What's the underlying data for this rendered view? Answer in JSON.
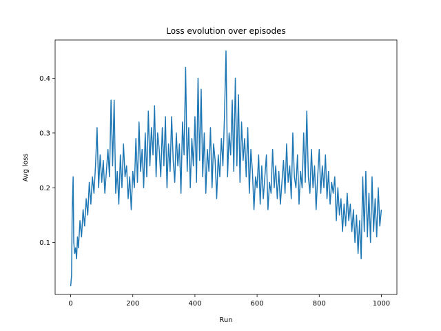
{
  "chart_data": {
    "type": "line",
    "title": "Loss evolution over episodes",
    "xlabel": "Run",
    "ylabel": "Avg loss",
    "xlim": [
      -50,
      1050
    ],
    "ylim": [
      0.005,
      0.47
    ],
    "x_ticks": [
      0,
      200,
      400,
      600,
      800,
      1000
    ],
    "y_ticks": [
      0.1,
      0.2,
      0.3,
      0.4
    ],
    "x_tick_labels": [
      "0",
      "200",
      "400",
      "600",
      "800",
      "1000"
    ],
    "y_tick_labels": [
      "0.1",
      "0.2",
      "0.3",
      "0.4"
    ],
    "grid": false,
    "series": [
      {
        "color": "#1f77b4",
        "points": [
          [
            0,
            0.02
          ],
          [
            3,
            0.04
          ],
          [
            5,
            0.16
          ],
          [
            8,
            0.22
          ],
          [
            10,
            0.1
          ],
          [
            13,
            0.08
          ],
          [
            16,
            0.09
          ],
          [
            19,
            0.07
          ],
          [
            22,
            0.11
          ],
          [
            25,
            0.09
          ],
          [
            30,
            0.14
          ],
          [
            35,
            0.11
          ],
          [
            40,
            0.16
          ],
          [
            45,
            0.13
          ],
          [
            50,
            0.18
          ],
          [
            55,
            0.15
          ],
          [
            60,
            0.21
          ],
          [
            65,
            0.17
          ],
          [
            70,
            0.22
          ],
          [
            75,
            0.19
          ],
          [
            80,
            0.24
          ],
          [
            85,
            0.31
          ],
          [
            90,
            0.2
          ],
          [
            95,
            0.26
          ],
          [
            100,
            0.21
          ],
          [
            105,
            0.25
          ],
          [
            110,
            0.19
          ],
          [
            115,
            0.23
          ],
          [
            120,
            0.27
          ],
          [
            125,
            0.22
          ],
          [
            130,
            0.36
          ],
          [
            135,
            0.24
          ],
          [
            140,
            0.36
          ],
          [
            145,
            0.19
          ],
          [
            150,
            0.23
          ],
          [
            155,
            0.17
          ],
          [
            160,
            0.26
          ],
          [
            165,
            0.2
          ],
          [
            170,
            0.28
          ],
          [
            175,
            0.22
          ],
          [
            180,
            0.24
          ],
          [
            185,
            0.18
          ],
          [
            190,
            0.22
          ],
          [
            195,
            0.16
          ],
          [
            200,
            0.23
          ],
          [
            205,
            0.2
          ],
          [
            210,
            0.29
          ],
          [
            215,
            0.21
          ],
          [
            220,
            0.32
          ],
          [
            225,
            0.23
          ],
          [
            230,
            0.27
          ],
          [
            235,
            0.2
          ],
          [
            240,
            0.3
          ],
          [
            245,
            0.22
          ],
          [
            250,
            0.34
          ],
          [
            255,
            0.24
          ],
          [
            260,
            0.31
          ],
          [
            265,
            0.26
          ],
          [
            270,
            0.35
          ],
          [
            275,
            0.22
          ],
          [
            280,
            0.3
          ],
          [
            285,
            0.27
          ],
          [
            290,
            0.22
          ],
          [
            295,
            0.31
          ],
          [
            300,
            0.24
          ],
          [
            305,
            0.33
          ],
          [
            310,
            0.2
          ],
          [
            315,
            0.28
          ],
          [
            320,
            0.23
          ],
          [
            325,
            0.33
          ],
          [
            330,
            0.25
          ],
          [
            335,
            0.21
          ],
          [
            340,
            0.3
          ],
          [
            345,
            0.24
          ],
          [
            350,
            0.28
          ],
          [
            355,
            0.19
          ],
          [
            360,
            0.32
          ],
          [
            365,
            0.26
          ],
          [
            370,
            0.42
          ],
          [
            375,
            0.23
          ],
          [
            380,
            0.31
          ],
          [
            385,
            0.2
          ],
          [
            390,
            0.29
          ],
          [
            395,
            0.24
          ],
          [
            400,
            0.33
          ],
          [
            405,
            0.21
          ],
          [
            410,
            0.4
          ],
          [
            415,
            0.25
          ],
          [
            420,
            0.38
          ],
          [
            425,
            0.22
          ],
          [
            430,
            0.3
          ],
          [
            435,
            0.19
          ],
          [
            440,
            0.27
          ],
          [
            445,
            0.23
          ],
          [
            450,
            0.31
          ],
          [
            455,
            0.2
          ],
          [
            460,
            0.28
          ],
          [
            465,
            0.25
          ],
          [
            470,
            0.18
          ],
          [
            475,
            0.26
          ],
          [
            480,
            0.22
          ],
          [
            485,
            0.29
          ],
          [
            490,
            0.24
          ],
          [
            495,
            0.33
          ],
          [
            500,
            0.45
          ],
          [
            505,
            0.22
          ],
          [
            510,
            0.3
          ],
          [
            515,
            0.26
          ],
          [
            520,
            0.36
          ],
          [
            525,
            0.23
          ],
          [
            530,
            0.4
          ],
          [
            535,
            0.24
          ],
          [
            540,
            0.37
          ],
          [
            545,
            0.21
          ],
          [
            550,
            0.32
          ],
          [
            555,
            0.25
          ],
          [
            560,
            0.29
          ],
          [
            565,
            0.22
          ],
          [
            570,
            0.31
          ],
          [
            575,
            0.19
          ],
          [
            580,
            0.27
          ],
          [
            585,
            0.23
          ],
          [
            590,
            0.16
          ],
          [
            595,
            0.22
          ],
          [
            600,
            0.2
          ],
          [
            605,
            0.26
          ],
          [
            610,
            0.17
          ],
          [
            615,
            0.24
          ],
          [
            620,
            0.18
          ],
          [
            625,
            0.22
          ],
          [
            630,
            0.26
          ],
          [
            635,
            0.16
          ],
          [
            640,
            0.21
          ],
          [
            645,
            0.19
          ],
          [
            650,
            0.27
          ],
          [
            655,
            0.2
          ],
          [
            660,
            0.24
          ],
          [
            665,
            0.18
          ],
          [
            670,
            0.23
          ],
          [
            675,
            0.17
          ],
          [
            680,
            0.21
          ],
          [
            685,
            0.25
          ],
          [
            690,
            0.19
          ],
          [
            695,
            0.28
          ],
          [
            700,
            0.21
          ],
          [
            705,
            0.24
          ],
          [
            710,
            0.18
          ],
          [
            715,
            0.3
          ],
          [
            720,
            0.22
          ],
          [
            725,
            0.2
          ],
          [
            730,
            0.26
          ],
          [
            735,
            0.17
          ],
          [
            740,
            0.23
          ],
          [
            745,
            0.2
          ],
          [
            750,
            0.3
          ],
          [
            755,
            0.21
          ],
          [
            760,
            0.34
          ],
          [
            765,
            0.22
          ],
          [
            770,
            0.19
          ],
          [
            775,
            0.27
          ],
          [
            780,
            0.2
          ],
          [
            785,
            0.24
          ],
          [
            790,
            0.16
          ],
          [
            795,
            0.22
          ],
          [
            800,
            0.27
          ],
          [
            805,
            0.19
          ],
          [
            810,
            0.24
          ],
          [
            815,
            0.2
          ],
          [
            820,
            0.26
          ],
          [
            825,
            0.18
          ],
          [
            830,
            0.23
          ],
          [
            835,
            0.17
          ],
          [
            840,
            0.21
          ],
          [
            845,
            0.19
          ],
          [
            850,
            0.22
          ],
          [
            855,
            0.14
          ],
          [
            860,
            0.2
          ],
          [
            865,
            0.15
          ],
          [
            870,
            0.18
          ],
          [
            875,
            0.12
          ],
          [
            880,
            0.17
          ],
          [
            885,
            0.13
          ],
          [
            890,
            0.19
          ],
          [
            895,
            0.14
          ],
          [
            900,
            0.17
          ],
          [
            905,
            0.12
          ],
          [
            910,
            0.16
          ],
          [
            915,
            0.1
          ],
          [
            920,
            0.15
          ],
          [
            925,
            0.08
          ],
          [
            930,
            0.14
          ],
          [
            935,
            0.07
          ],
          [
            940,
            0.22
          ],
          [
            945,
            0.12
          ],
          [
            950,
            0.23
          ],
          [
            955,
            0.11
          ],
          [
            960,
            0.19
          ],
          [
            965,
            0.1
          ],
          [
            970,
            0.22
          ],
          [
            975,
            0.12
          ],
          [
            980,
            0.18
          ],
          [
            985,
            0.11
          ],
          [
            990,
            0.2
          ],
          [
            995,
            0.13
          ],
          [
            1000,
            0.16
          ]
        ]
      }
    ]
  }
}
